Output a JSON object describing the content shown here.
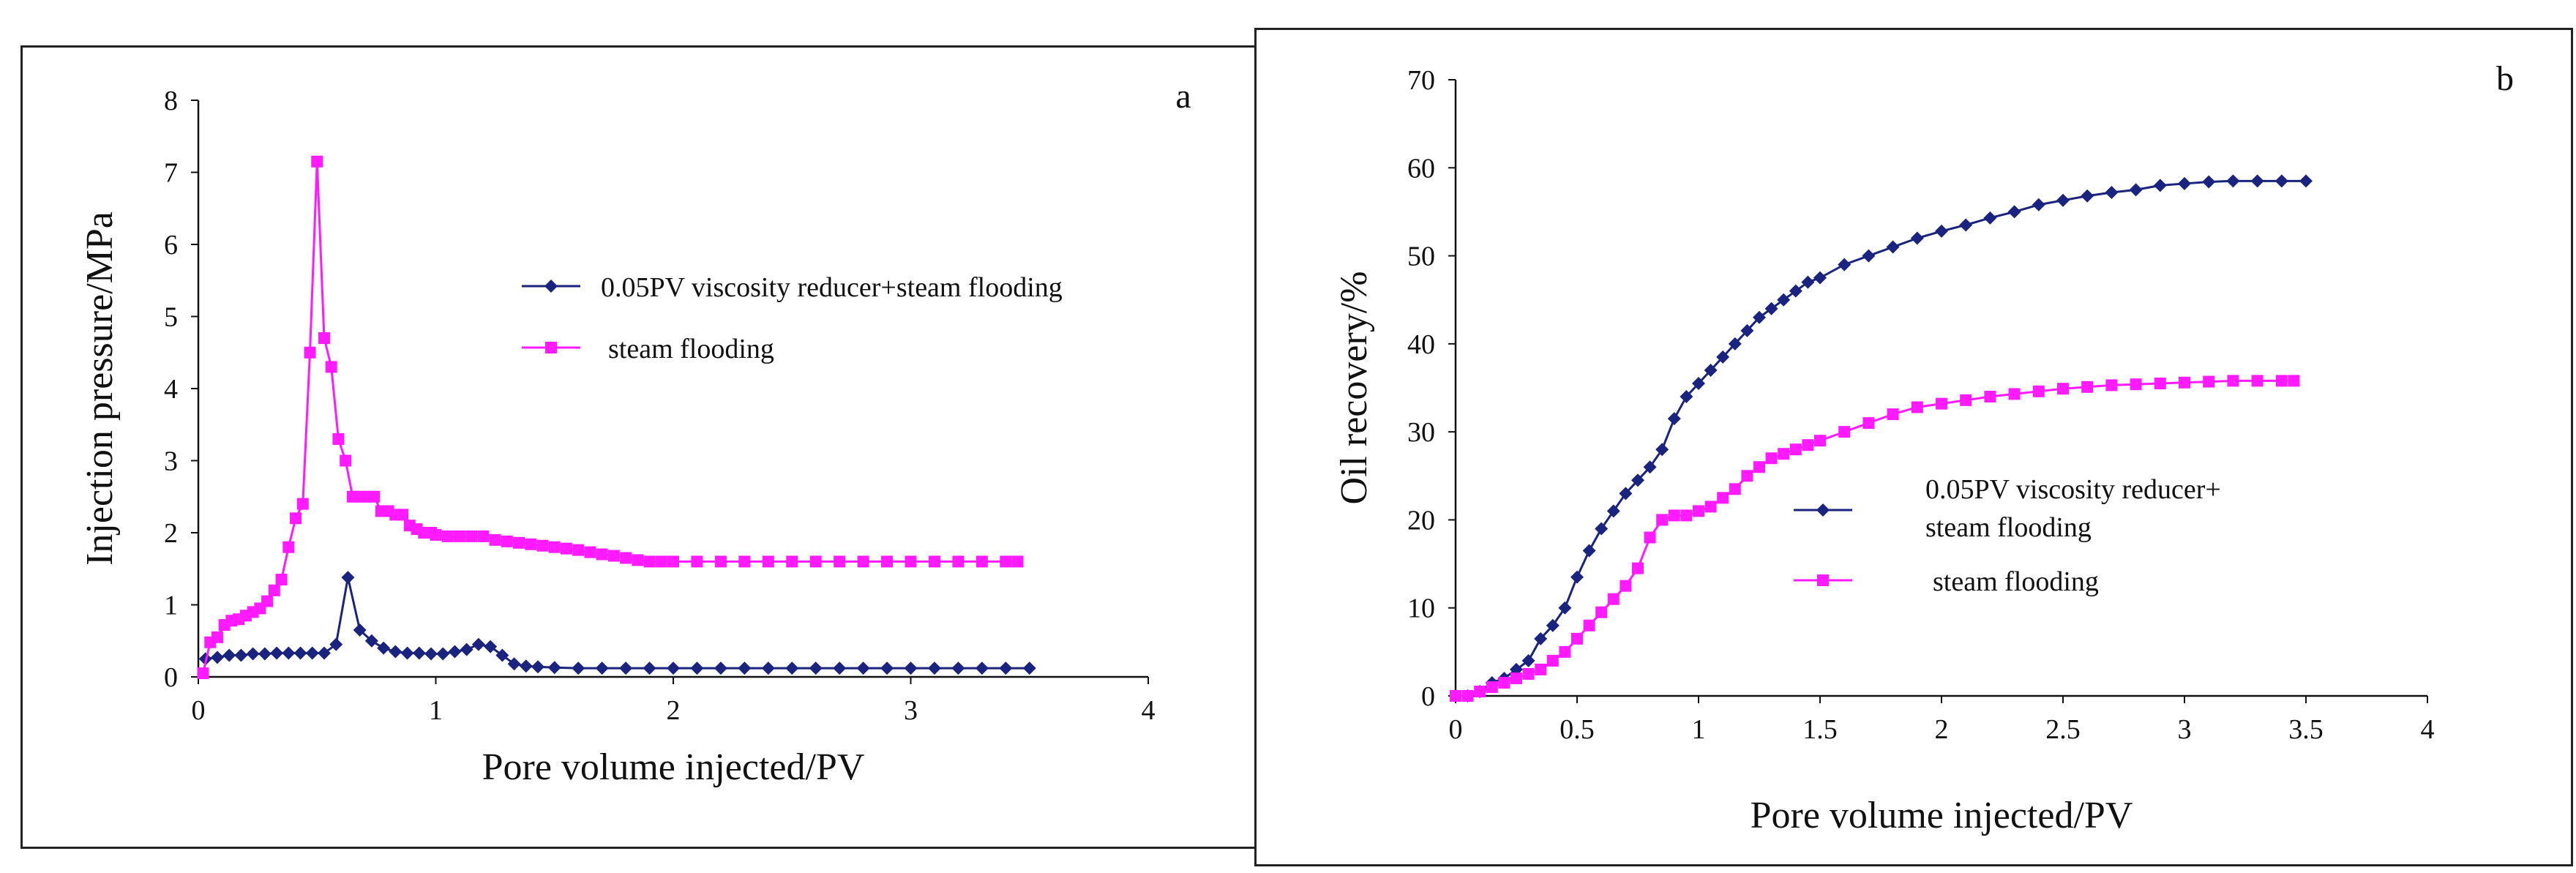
{
  "chart_data": [
    {
      "type": "line",
      "panel_label": "a",
      "title": "",
      "xlabel": "Pore volume injected/PV",
      "ylabel": "Injection pressure/MPa",
      "xlim": [
        0,
        4
      ],
      "ylim": [
        0,
        8
      ],
      "x_ticks": [
        "0",
        "1",
        "2",
        "3",
        "4"
      ],
      "y_ticks": [
        "0",
        "1",
        "2",
        "3",
        "4",
        "5",
        "6",
        "7",
        "8"
      ],
      "legend": [
        "0.05PV viscosity reducer+steam flooding",
        "steam flooding"
      ],
      "series": [
        {
          "name": "0.05PV viscosity reducer+steam flooding",
          "color": "#1a237e",
          "marker": "diamond",
          "x": [
            0.03,
            0.08,
            0.13,
            0.18,
            0.23,
            0.28,
            0.33,
            0.38,
            0.43,
            0.48,
            0.53,
            0.58,
            0.63,
            0.68,
            0.73,
            0.78,
            0.83,
            0.88,
            0.93,
            0.98,
            1.03,
            1.08,
            1.13,
            1.18,
            1.23,
            1.28,
            1.33,
            1.38,
            1.43,
            1.5,
            1.6,
            1.7,
            1.8,
            1.9,
            2.0,
            2.1,
            2.2,
            2.3,
            2.4,
            2.5,
            2.6,
            2.7,
            2.8,
            2.9,
            3.0,
            3.1,
            3.2,
            3.3,
            3.4,
            3.5
          ],
          "y": [
            0.25,
            0.27,
            0.3,
            0.3,
            0.32,
            0.32,
            0.33,
            0.33,
            0.33,
            0.33,
            0.33,
            0.45,
            1.38,
            0.65,
            0.5,
            0.4,
            0.35,
            0.33,
            0.33,
            0.32,
            0.32,
            0.35,
            0.38,
            0.45,
            0.42,
            0.3,
            0.18,
            0.15,
            0.14,
            0.13,
            0.12,
            0.12,
            0.12,
            0.12,
            0.12,
            0.12,
            0.12,
            0.12,
            0.12,
            0.12,
            0.12,
            0.12,
            0.12,
            0.12,
            0.12,
            0.12,
            0.12,
            0.12,
            0.12,
            0.12
          ]
        },
        {
          "name": "steam flooding",
          "color": "#ff1aff",
          "marker": "square",
          "x": [
            0.02,
            0.05,
            0.08,
            0.11,
            0.14,
            0.17,
            0.2,
            0.23,
            0.26,
            0.29,
            0.32,
            0.35,
            0.38,
            0.41,
            0.44,
            0.47,
            0.5,
            0.53,
            0.56,
            0.59,
            0.62,
            0.65,
            0.68,
            0.71,
            0.74,
            0.77,
            0.8,
            0.83,
            0.86,
            0.89,
            0.92,
            0.95,
            0.98,
            1.0,
            1.05,
            1.1,
            1.15,
            1.2,
            1.25,
            1.3,
            1.35,
            1.4,
            1.45,
            1.5,
            1.55,
            1.6,
            1.65,
            1.7,
            1.75,
            1.8,
            1.85,
            1.9,
            1.95,
            2.0,
            2.1,
            2.2,
            2.3,
            2.4,
            2.5,
            2.6,
            2.7,
            2.8,
            2.9,
            3.0,
            3.1,
            3.2,
            3.3,
            3.4,
            3.45
          ],
          "y": [
            0.05,
            0.48,
            0.55,
            0.72,
            0.78,
            0.8,
            0.85,
            0.9,
            0.95,
            1.05,
            1.2,
            1.35,
            1.8,
            2.2,
            2.4,
            4.5,
            7.15,
            4.7,
            4.3,
            3.3,
            3.0,
            2.5,
            2.5,
            2.5,
            2.5,
            2.3,
            2.3,
            2.25,
            2.25,
            2.1,
            2.05,
            2.0,
            2.0,
            1.97,
            1.95,
            1.95,
            1.95,
            1.95,
            1.9,
            1.88,
            1.86,
            1.84,
            1.82,
            1.8,
            1.78,
            1.76,
            1.73,
            1.7,
            1.68,
            1.65,
            1.62,
            1.6,
            1.6,
            1.6,
            1.6,
            1.6,
            1.6,
            1.6,
            1.6,
            1.6,
            1.6,
            1.6,
            1.6,
            1.6,
            1.6,
            1.6,
            1.6,
            1.6,
            1.6
          ]
        }
      ]
    },
    {
      "type": "line",
      "panel_label": "b",
      "title": "",
      "xlabel": "Pore volume injected/PV",
      "ylabel": "Oil recovery/%",
      "xlim": [
        0,
        4
      ],
      "ylim": [
        0,
        70
      ],
      "x_ticks": [
        "0",
        "0.5",
        "1",
        "1.5",
        "2",
        "2.5",
        "3",
        "3.5",
        "4"
      ],
      "y_ticks": [
        "0",
        "10",
        "20",
        "30",
        "40",
        "50",
        "60",
        "70"
      ],
      "legend": [
        "0.05PV viscosity reducer+",
        "steam flooding",
        "steam flooding"
      ],
      "series": [
        {
          "name": "0.05PV viscosity reducer+ steam flooding",
          "color": "#1a237e",
          "marker": "diamond",
          "x": [
            0.0,
            0.05,
            0.1,
            0.15,
            0.2,
            0.25,
            0.3,
            0.35,
            0.4,
            0.45,
            0.5,
            0.55,
            0.6,
            0.65,
            0.7,
            0.75,
            0.8,
            0.85,
            0.9,
            0.95,
            1.0,
            1.05,
            1.1,
            1.15,
            1.2,
            1.25,
            1.3,
            1.35,
            1.4,
            1.45,
            1.5,
            1.6,
            1.7,
            1.8,
            1.9,
            2.0,
            2.1,
            2.2,
            2.3,
            2.4,
            2.5,
            2.6,
            2.7,
            2.8,
            2.9,
            3.0,
            3.1,
            3.2,
            3.3,
            3.4,
            3.5
          ],
          "y": [
            0,
            0,
            0.5,
            1.5,
            2,
            3,
            4,
            6.5,
            8,
            10,
            13.5,
            16.5,
            19,
            21,
            23,
            24.5,
            26,
            28,
            31.5,
            34,
            35.5,
            37,
            38.5,
            40,
            41.5,
            43,
            44,
            45,
            46,
            47,
            47.5,
            49,
            50,
            51,
            52,
            52.8,
            53.5,
            54.3,
            55,
            55.8,
            56.3,
            56.8,
            57.2,
            57.5,
            58,
            58.2,
            58.4,
            58.5,
            58.5,
            58.5,
            58.5
          ]
        },
        {
          "name": "steam flooding",
          "color": "#ff1aff",
          "marker": "square",
          "x": [
            0.0,
            0.05,
            0.1,
            0.15,
            0.2,
            0.25,
            0.3,
            0.35,
            0.4,
            0.45,
            0.5,
            0.55,
            0.6,
            0.65,
            0.7,
            0.75,
            0.8,
            0.85,
            0.9,
            0.95,
            1.0,
            1.05,
            1.1,
            1.15,
            1.2,
            1.25,
            1.3,
            1.35,
            1.4,
            1.45,
            1.5,
            1.6,
            1.7,
            1.8,
            1.9,
            2.0,
            2.1,
            2.2,
            2.3,
            2.4,
            2.5,
            2.6,
            2.7,
            2.8,
            2.9,
            3.0,
            3.1,
            3.2,
            3.3,
            3.4,
            3.45
          ],
          "y": [
            0,
            0,
            0.5,
            1,
            1.5,
            2,
            2.5,
            3,
            4,
            5,
            6.5,
            8,
            9.5,
            11,
            12.5,
            14.5,
            18,
            20,
            20.5,
            20.5,
            21,
            21.5,
            22.5,
            23.5,
            25,
            26,
            27,
            27.5,
            28,
            28.5,
            29,
            30,
            31,
            32,
            32.8,
            33.2,
            33.6,
            34,
            34.3,
            34.6,
            34.9,
            35.1,
            35.3,
            35.4,
            35.5,
            35.6,
            35.7,
            35.8,
            35.8,
            35.8,
            35.8
          ]
        }
      ]
    }
  ]
}
